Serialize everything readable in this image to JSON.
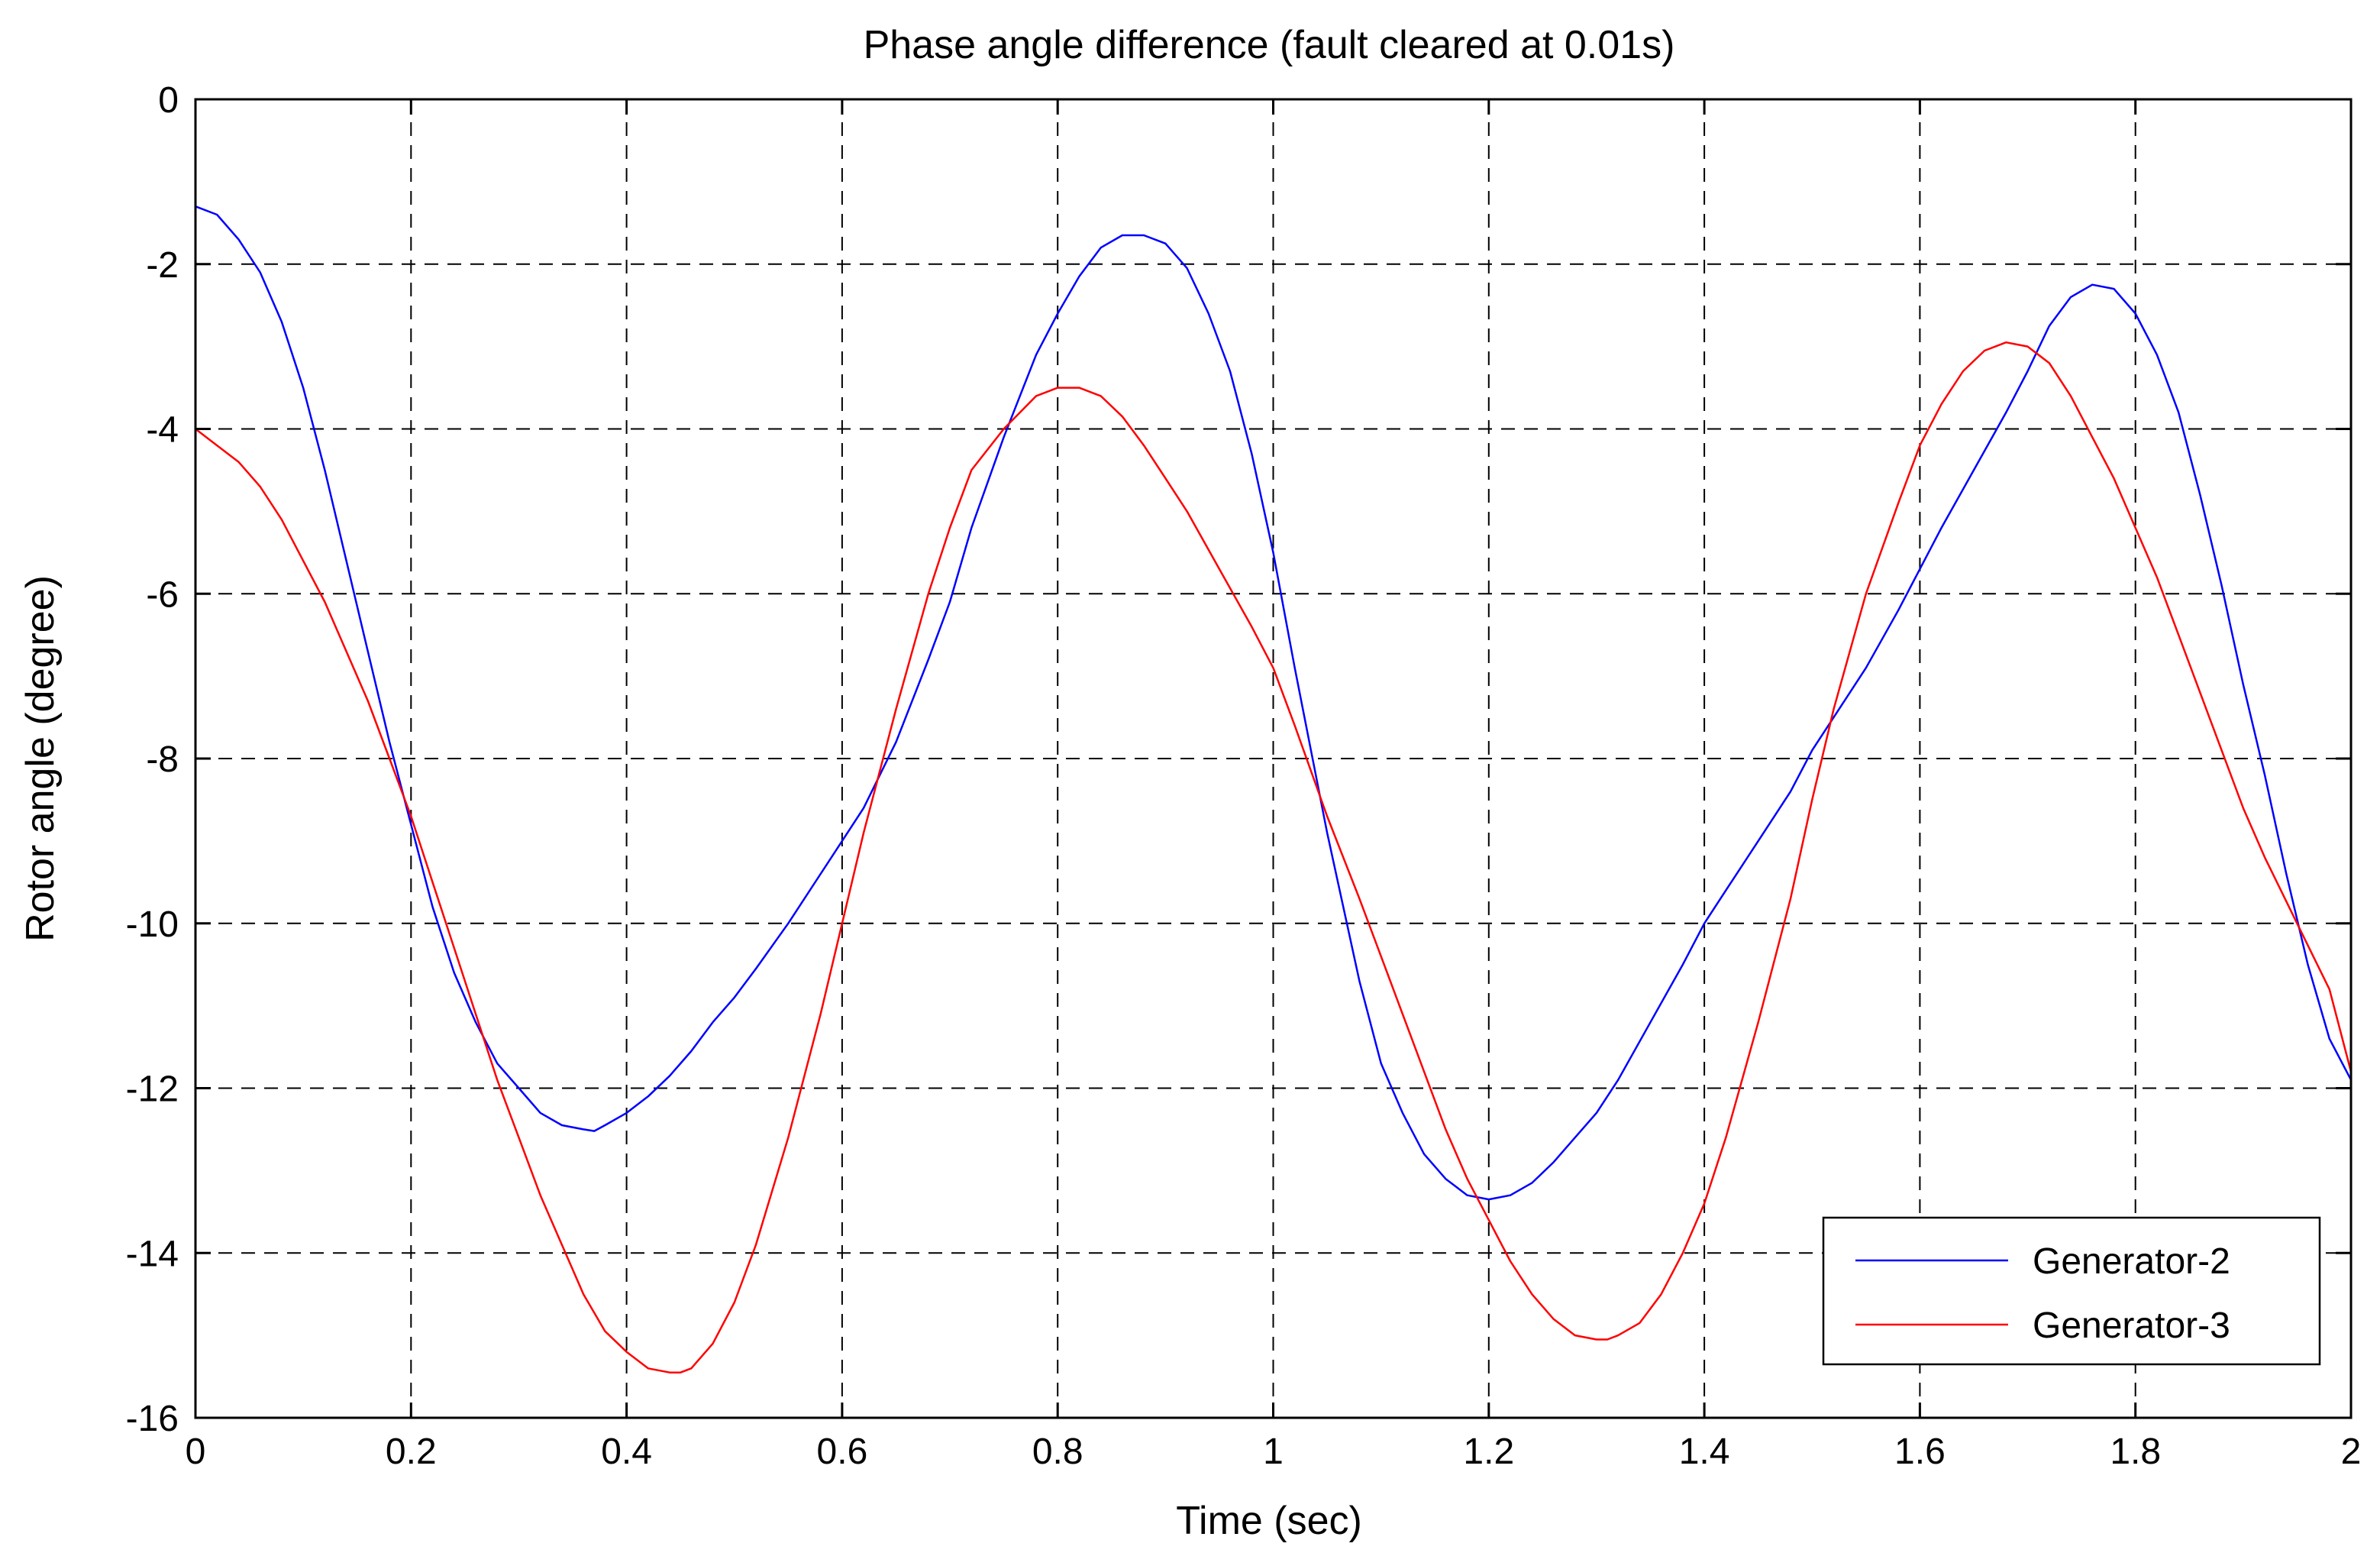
{
  "chart_data": {
    "type": "line",
    "title": "Phase angle difference (fault cleared at 0.01s)",
    "xlabel": "Time (sec)",
    "ylabel": "Rotor angle (degree)",
    "xlim": [
      0,
      2
    ],
    "ylim": [
      -16,
      0
    ],
    "xticks": [
      0,
      0.2,
      0.4,
      0.6,
      0.8,
      1,
      1.2,
      1.4,
      1.6,
      1.8,
      2
    ],
    "xtick_labels": [
      "0",
      "0.2",
      "0.4",
      "0.6",
      "0.8",
      "1",
      "1.2",
      "1.4",
      "1.6",
      "1.8",
      "2"
    ],
    "yticks": [
      0,
      -2,
      -4,
      -6,
      -8,
      -10,
      -12,
      -14,
      -16
    ],
    "ytick_labels": [
      "0",
      "-2",
      "-4",
      "-6",
      "-8",
      "-10",
      "-12",
      "-14",
      "-16"
    ],
    "grid": true,
    "legend_position": "bottom-right",
    "series": [
      {
        "name": "Generator-2",
        "color": "#0000ff",
        "x": [
          0,
          0.02,
          0.04,
          0.06,
          0.08,
          0.1,
          0.12,
          0.14,
          0.16,
          0.18,
          0.2,
          0.22,
          0.24,
          0.26,
          0.28,
          0.3,
          0.32,
          0.34,
          0.36,
          0.37,
          0.38,
          0.4,
          0.42,
          0.44,
          0.46,
          0.48,
          0.5,
          0.52,
          0.55,
          0.58,
          0.6,
          0.62,
          0.65,
          0.68,
          0.7,
          0.72,
          0.75,
          0.78,
          0.8,
          0.82,
          0.84,
          0.86,
          0.88,
          0.9,
          0.92,
          0.94,
          0.96,
          0.98,
          1.0,
          1.02,
          1.05,
          1.08,
          1.1,
          1.12,
          1.14,
          1.16,
          1.18,
          1.2,
          1.22,
          1.24,
          1.26,
          1.28,
          1.3,
          1.32,
          1.35,
          1.38,
          1.4,
          1.42,
          1.45,
          1.48,
          1.5,
          1.52,
          1.55,
          1.58,
          1.6,
          1.62,
          1.65,
          1.68,
          1.7,
          1.72,
          1.74,
          1.76,
          1.78,
          1.8,
          1.82,
          1.84,
          1.86,
          1.88,
          1.9,
          1.92,
          1.94,
          1.96,
          1.98,
          2.0
        ],
        "y": [
          -1.3,
          -1.4,
          -1.7,
          -2.1,
          -2.7,
          -3.5,
          -4.5,
          -5.6,
          -6.7,
          -7.8,
          -8.8,
          -9.8,
          -10.6,
          -11.2,
          -11.7,
          -12.0,
          -12.3,
          -12.45,
          -12.5,
          -12.52,
          -12.45,
          -12.3,
          -12.1,
          -11.85,
          -11.55,
          -11.2,
          -10.9,
          -10.55,
          -10.0,
          -9.4,
          -9.0,
          -8.6,
          -7.8,
          -6.8,
          -6.1,
          -5.2,
          -4.1,
          -3.1,
          -2.6,
          -2.15,
          -1.8,
          -1.65,
          -1.65,
          -1.75,
          -2.05,
          -2.6,
          -3.3,
          -4.3,
          -5.5,
          -6.9,
          -8.9,
          -10.7,
          -11.7,
          -12.3,
          -12.8,
          -13.1,
          -13.3,
          -13.35,
          -13.3,
          -13.15,
          -12.9,
          -12.6,
          -12.3,
          -11.9,
          -11.2,
          -10.5,
          -10.0,
          -9.6,
          -9.0,
          -8.4,
          -7.9,
          -7.5,
          -6.9,
          -6.2,
          -5.7,
          -5.2,
          -4.5,
          -3.8,
          -3.3,
          -2.75,
          -2.4,
          -2.25,
          -2.3,
          -2.6,
          -3.1,
          -3.8,
          -4.8,
          -5.9,
          -7.1,
          -8.2,
          -9.4,
          -10.5,
          -11.4,
          -11.9
        ]
      },
      {
        "name": "Generator-3",
        "color": "#ff0000",
        "x": [
          0,
          0.02,
          0.04,
          0.06,
          0.08,
          0.1,
          0.12,
          0.14,
          0.16,
          0.18,
          0.2,
          0.22,
          0.24,
          0.26,
          0.28,
          0.3,
          0.32,
          0.34,
          0.36,
          0.38,
          0.4,
          0.42,
          0.44,
          0.45,
          0.46,
          0.48,
          0.5,
          0.52,
          0.55,
          0.58,
          0.6,
          0.62,
          0.65,
          0.68,
          0.7,
          0.72,
          0.75,
          0.78,
          0.8,
          0.82,
          0.84,
          0.86,
          0.88,
          0.9,
          0.92,
          0.95,
          0.98,
          1.0,
          1.02,
          1.05,
          1.08,
          1.1,
          1.12,
          1.14,
          1.16,
          1.18,
          1.2,
          1.22,
          1.24,
          1.26,
          1.28,
          1.3,
          1.31,
          1.32,
          1.34,
          1.36,
          1.38,
          1.4,
          1.42,
          1.45,
          1.48,
          1.5,
          1.52,
          1.55,
          1.58,
          1.6,
          1.62,
          1.64,
          1.66,
          1.68,
          1.7,
          1.72,
          1.74,
          1.76,
          1.78,
          1.8,
          1.82,
          1.84,
          1.86,
          1.88,
          1.9,
          1.92,
          1.95,
          1.98,
          2.0
        ],
        "y": [
          -4.0,
          -4.2,
          -4.4,
          -4.7,
          -5.1,
          -5.6,
          -6.1,
          -6.7,
          -7.3,
          -8.0,
          -8.7,
          -9.5,
          -10.3,
          -11.1,
          -11.9,
          -12.6,
          -13.3,
          -13.9,
          -14.5,
          -14.95,
          -15.2,
          -15.4,
          -15.45,
          -15.45,
          -15.4,
          -15.1,
          -14.6,
          -13.9,
          -12.6,
          -11.1,
          -10.0,
          -8.9,
          -7.4,
          -6.0,
          -5.2,
          -4.5,
          -4.0,
          -3.6,
          -3.5,
          -3.5,
          -3.6,
          -3.85,
          -4.2,
          -4.6,
          -5.0,
          -5.7,
          -6.4,
          -6.9,
          -7.6,
          -8.7,
          -9.7,
          -10.4,
          -11.1,
          -11.8,
          -12.5,
          -13.1,
          -13.6,
          -14.1,
          -14.5,
          -14.8,
          -15.0,
          -15.05,
          -15.05,
          -15.0,
          -14.85,
          -14.5,
          -14.0,
          -13.4,
          -12.6,
          -11.2,
          -9.7,
          -8.5,
          -7.4,
          -6.0,
          -4.9,
          -4.2,
          -3.7,
          -3.3,
          -3.05,
          -2.95,
          -3.0,
          -3.2,
          -3.6,
          -4.1,
          -4.6,
          -5.2,
          -5.8,
          -6.5,
          -7.2,
          -7.9,
          -8.6,
          -9.2,
          -10.0,
          -10.8,
          -11.8
        ]
      }
    ]
  }
}
